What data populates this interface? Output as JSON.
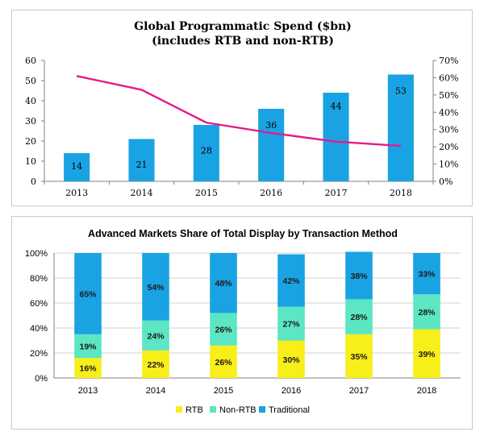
{
  "chart_data": [
    {
      "type": "bar",
      "title": "Global Programmatic Spend ($bn)",
      "subtitle": "(includes RTB and non-RTB)",
      "categories": [
        "2013",
        "2014",
        "2015",
        "2016",
        "2017",
        "2018"
      ],
      "series": [
        {
          "values": [
            14,
            21,
            28,
            36,
            44,
            53
          ],
          "type": "bar",
          "axis": "left",
          "color": "#1aa3e3"
        },
        {
          "values": [
            61,
            53,
            34,
            28,
            23,
            20.5
          ],
          "type": "line",
          "axis": "right",
          "unit": "%",
          "color": "#e6198a"
        }
      ],
      "data_labels": [
        "14",
        "21",
        "28",
        "36",
        "44",
        "53"
      ],
      "ylim": [
        0,
        60
      ],
      "yticks": [
        "0",
        "10",
        "20",
        "30",
        "40",
        "50",
        "60"
      ],
      "y2lim": [
        0,
        70
      ],
      "y2ticks": [
        "0%",
        "10%",
        "20%",
        "30%",
        "40%",
        "50%",
        "60%",
        "70%"
      ],
      "grid": false,
      "legend": "none"
    },
    {
      "type": "bar",
      "stacked": true,
      "title": "Advanced Markets Share of Total Display by Transaction Method",
      "categories": [
        "2013",
        "2014",
        "2015",
        "2016",
        "2017",
        "2018"
      ],
      "series": [
        {
          "name": "RTB",
          "values": [
            16,
            22,
            26,
            30,
            35,
            39
          ],
          "color": "#f7ee1a",
          "labels": [
            "16%",
            "22%",
            "26%",
            "30%",
            "35%",
            "39%"
          ]
        },
        {
          "name": "Non-RTB",
          "values": [
            19,
            24,
            26,
            27,
            28,
            28
          ],
          "color": "#5ce6c3",
          "labels": [
            "19%",
            "24%",
            "26%",
            "27%",
            "28%",
            "28%"
          ]
        },
        {
          "name": "Traditional",
          "values": [
            65,
            54,
            48,
            42,
            38,
            33
          ],
          "color": "#1aa3e3",
          "labels": [
            "65%",
            "54%",
            "48%",
            "42%",
            "38%",
            "33%"
          ]
        }
      ],
      "ylim": [
        0,
        100
      ],
      "yticks": [
        "0%",
        "20%",
        "40%",
        "60%",
        "80%",
        "100%"
      ],
      "grid": true,
      "legend": "bottom"
    }
  ]
}
